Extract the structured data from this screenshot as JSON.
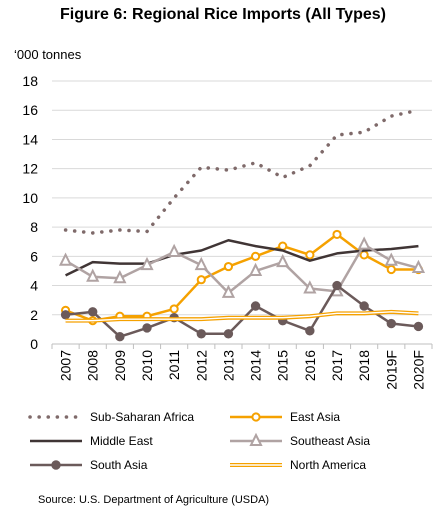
{
  "chart_data": {
    "type": "line",
    "title": "Figure 6: Regional Rice Imports (All Types)",
    "ylabel": "‘000 tonnes",
    "xlabel": "",
    "categories": [
      "2007",
      "2008",
      "2009",
      "2010",
      "2011",
      "2012",
      "2013",
      "2014",
      "2015",
      "2016",
      "2017",
      "2018",
      "2019F",
      "2020F"
    ],
    "ylim": [
      0,
      18
    ],
    "yticks": [
      "0",
      "2",
      "4",
      "6",
      "8",
      "10",
      "12",
      "14",
      "16",
      "18"
    ],
    "grid": true,
    "legend_position": "bottom",
    "series": [
      {
        "name": "Sub-Saharan Africa",
        "color": "#7f6a6a",
        "style": "dotted",
        "values": [
          7.8,
          7.6,
          7.8,
          7.7,
          10.0,
          12.1,
          11.9,
          12.4,
          11.4,
          12.2,
          14.3,
          14.5,
          15.6,
          16.0
        ]
      },
      {
        "name": "East Asia",
        "color": "#f5a100",
        "style": "circle",
        "values": [
          2.3,
          1.6,
          1.9,
          1.9,
          2.4,
          4.4,
          5.3,
          6.0,
          6.7,
          6.1,
          7.5,
          6.1,
          5.1,
          5.1
        ]
      },
      {
        "name": "Middle East",
        "color": "#403535",
        "style": "solid",
        "values": [
          4.7,
          5.6,
          5.5,
          5.5,
          6.1,
          6.4,
          7.1,
          6.7,
          6.4,
          5.7,
          6.2,
          6.4,
          6.5,
          6.7
        ]
      },
      {
        "name": "Southeast Asia",
        "color": "#b0a3a3",
        "style": "triangle",
        "values": [
          5.7,
          4.6,
          4.5,
          5.4,
          6.3,
          5.4,
          3.5,
          5.0,
          5.6,
          3.8,
          3.6,
          6.8,
          5.7,
          5.2
        ]
      },
      {
        "name": "South Asia",
        "color": "#6b5a5a",
        "style": "filled-circle",
        "values": [
          2.0,
          2.2,
          0.5,
          1.1,
          1.8,
          0.7,
          0.7,
          2.6,
          1.6,
          0.9,
          4.0,
          2.6,
          1.4,
          1.2
        ]
      },
      {
        "name": "North America",
        "color": "#f5a100",
        "style": "double",
        "values": [
          1.6,
          1.6,
          1.7,
          1.7,
          1.7,
          1.7,
          1.8,
          1.8,
          1.8,
          1.9,
          2.1,
          2.1,
          2.2,
          2.1
        ]
      }
    ]
  },
  "source": "Source: U.S. Department of Agriculture (USDA)"
}
